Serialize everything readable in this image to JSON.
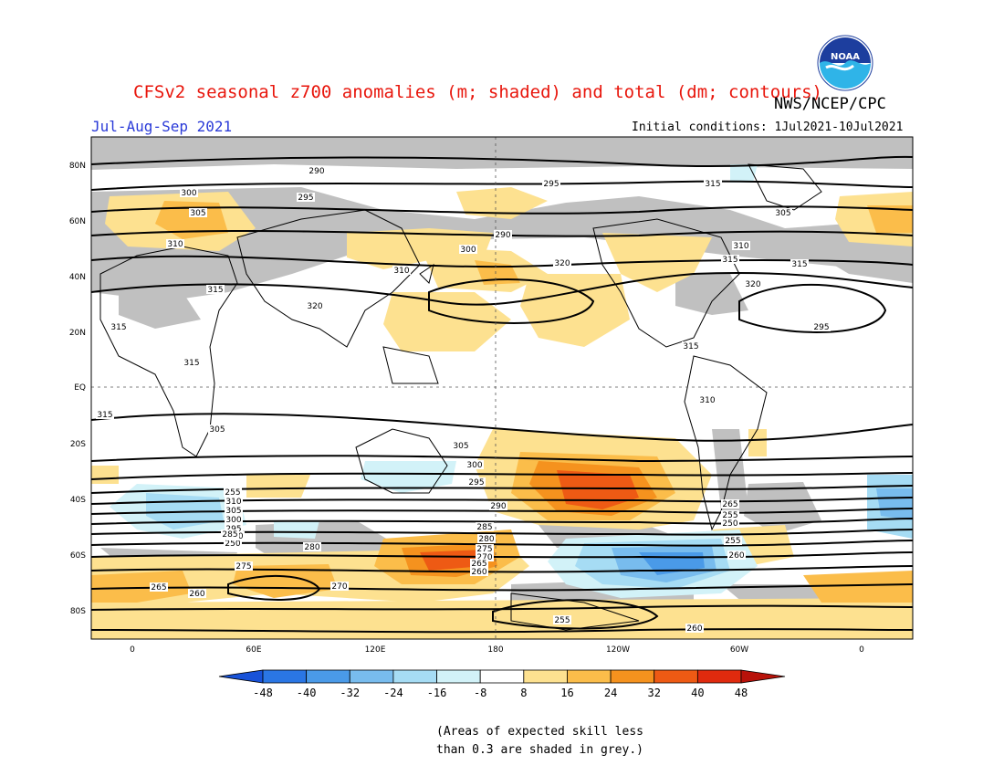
{
  "header": {
    "title": "CFSv2 seasonal z700 anomalies (m; shaded) and total (dm; contours)",
    "agency": "NWS/NCEP/CPC",
    "season": "Jul-Aug-Sep 2021",
    "initial_conditions": "Initial conditions: 1Jul2021-10Jul2021",
    "logo_icon": "noaa-logo-icon",
    "logo_text": "NOAA"
  },
  "map": {
    "lat_labels": [
      "80N",
      "60N",
      "40N",
      "20N",
      "EQ",
      "20S",
      "40S",
      "60S",
      "80S"
    ],
    "lon_labels": [
      "0",
      "60E",
      "120E",
      "180",
      "120W",
      "60W",
      "0"
    ],
    "contour_labels": [
      "290",
      "300",
      "295",
      "305",
      "310",
      "315",
      "320",
      "315",
      "315",
      "315",
      "305",
      "300",
      "290",
      "295",
      "315",
      "310",
      "320",
      "320",
      "295",
      "305",
      "310",
      "315",
      "315",
      "315",
      "310",
      "305",
      "300",
      "295",
      "290",
      "285",
      "280",
      "275",
      "270",
      "265",
      "260",
      "255",
      "250",
      "310",
      "305",
      "300",
      "295",
      "290",
      "285",
      "280",
      "275",
      "270",
      "265",
      "260",
      "255",
      "260",
      "265",
      "255",
      "250",
      "255",
      "260"
    ],
    "colors": {
      "skill_grey": "#c0c0c0",
      "land_outline": "#000000",
      "contour": "#000000",
      "positive_anomaly": "#f4a41e",
      "negative_anomaly": "#3a8ee4"
    }
  },
  "colorbar": {
    "tick_labels": [
      "-48",
      "-40",
      "-32",
      "-24",
      "-16",
      "-8",
      "8",
      "16",
      "24",
      "32",
      "40",
      "48"
    ],
    "colors": [
      "#1852d8",
      "#2a76e4",
      "#4a9ae8",
      "#78bcee",
      "#a6dcf4",
      "#d2f2f8",
      "#ffffff",
      "#fde190",
      "#fbbd4a",
      "#f5921e",
      "#ee5a14",
      "#e02a0e",
      "#b8120a"
    ]
  },
  "skill_note": {
    "line1": "(Areas of expected skill less",
    "line2": "than 0.3 are shaded in grey.)"
  }
}
